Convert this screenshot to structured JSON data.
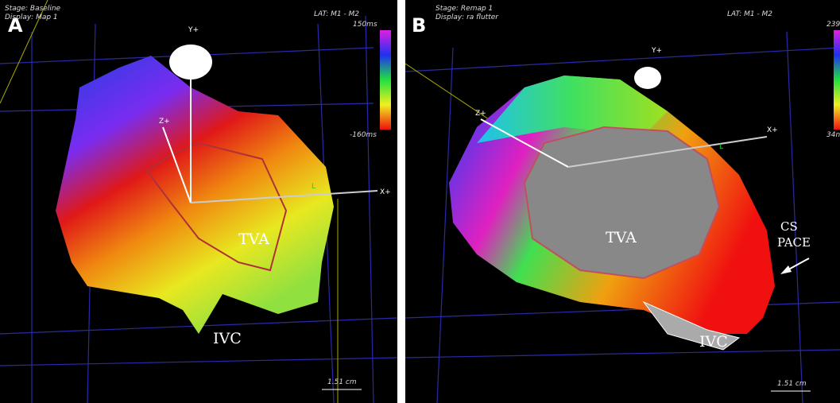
{
  "panels": [
    {
      "label": "A",
      "stage": "Stage: Baseline",
      "display": "Display: Map 1",
      "lat": "LAT: M1 - M2",
      "scale_max": "150ms",
      "scale_min": "-160ms",
      "axis_y": "Y+",
      "axis_z": "Z+",
      "axis_x": "X+",
      "marker": "L",
      "annotations": [
        "TVA",
        "IVC"
      ],
      "scale_bar": "1.51 cm"
    },
    {
      "label": "B",
      "stage": "Stage: Remap 1",
      "display": "Display: ra flutter",
      "lat": "LAT: M1 - M2",
      "scale_max": "239",
      "scale_min": "34n",
      "axis_y": "Y+",
      "axis_z": "Z+",
      "axis_x": "X+",
      "marker": "L",
      "annotations": [
        "TVA",
        "CS",
        "PACE",
        "IVC"
      ],
      "scale_bar": "1.51 cm"
    }
  ]
}
